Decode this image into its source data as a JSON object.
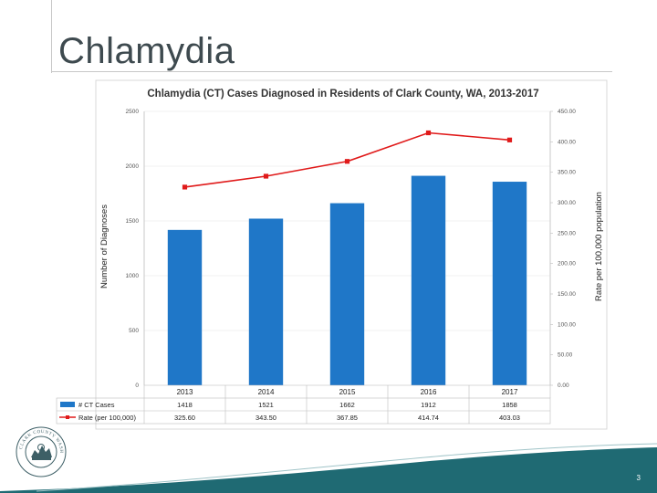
{
  "slide": {
    "title": "Chlamydia",
    "page_number": "3",
    "seal_text": "CLARK COUNTY WASHINGTON",
    "colors": {
      "footer": "#1f6a73",
      "bar": "#1f77c8",
      "line": "#e01a1a"
    }
  },
  "chart_data": {
    "type": "bar",
    "title": "Chlamydia (CT) Cases Diagnosed in Residents of Clark County, WA, 2013-2017",
    "categories": [
      "2013",
      "2014",
      "2015",
      "2016",
      "2017"
    ],
    "series": [
      {
        "name": "# CT Cases",
        "type": "bar",
        "axis": "left",
        "values": [
          1418,
          1521,
          1662,
          1912,
          1858
        ]
      },
      {
        "name": "Rate (per 100,000)",
        "type": "line",
        "axis": "right",
        "values": [
          325.6,
          343.5,
          367.85,
          414.74,
          403.03
        ]
      }
    ],
    "ylabel": "Number of Diagnoses",
    "ylabel_right": "Rate per 100,000 population",
    "ylim": [
      0,
      2500
    ],
    "ylim_right": [
      0,
      450
    ],
    "y_ticks": [
      "0",
      "500",
      "1000",
      "1500",
      "2000",
      "2500"
    ],
    "y_ticks_right": [
      "0.00",
      "50.00",
      "100.00",
      "150.00",
      "200.00",
      "250.00",
      "300.00",
      "350.00",
      "400.00",
      "450.00"
    ],
    "table_rows": [
      {
        "label": "# CT Cases",
        "cells": [
          "1418",
          "1521",
          "1662",
          "1912",
          "1858"
        ]
      },
      {
        "label": "Rate (per 100,000)",
        "cells": [
          "325.60",
          "343.50",
          "367.85",
          "414.74",
          "403.03"
        ]
      }
    ]
  }
}
